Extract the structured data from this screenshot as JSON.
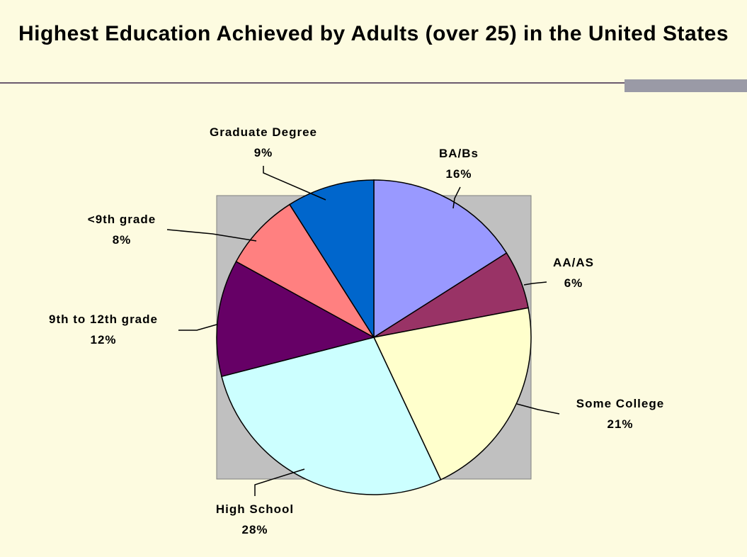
{
  "chart_data": {
    "type": "pie",
    "title": "Highest Education Achieved by Adults (over 25) in the United States",
    "slices": [
      {
        "label": "BA/Bs",
        "value": 16,
        "value_label": "16%",
        "color": "#9999ff"
      },
      {
        "label": "AA/AS",
        "value": 6,
        "value_label": "6%",
        "color": "#993366"
      },
      {
        "label": "Some College",
        "value": 21,
        "value_label": "21%",
        "color": "#ffffcc"
      },
      {
        "label": "High School",
        "value": 28,
        "value_label": "28%",
        "color": "#ccffff"
      },
      {
        "label": "9th to 12th grade",
        "value": 12,
        "value_label": "12%",
        "color": "#660066"
      },
      {
        "label": "<9th grade",
        "value": 8,
        "value_label": "8%",
        "color": "#ff8080"
      },
      {
        "label": "Graduate Degree",
        "value": 9,
        "value_label": "9%",
        "color": "#0066cc"
      }
    ],
    "plot_area_color": "#c0c0c0",
    "legend": "none",
    "grid": false
  }
}
